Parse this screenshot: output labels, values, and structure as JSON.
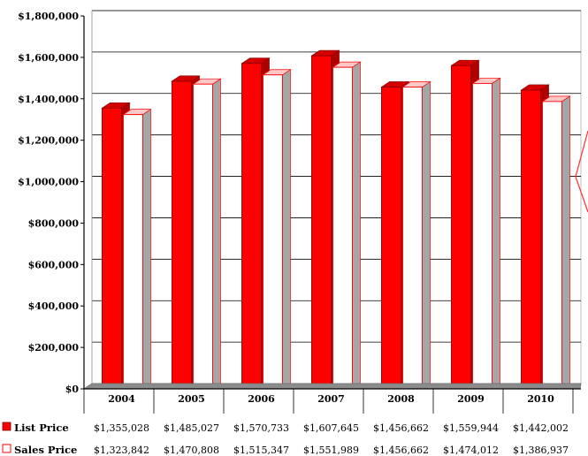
{
  "chart_data": {
    "type": "bar",
    "categories": [
      "2004",
      "2005",
      "2006",
      "2007",
      "2008",
      "2009",
      "2010"
    ],
    "series": [
      {
        "name": "List Price",
        "values": [
          1355028,
          1485027,
          1570733,
          1607645,
          1456662,
          1559944,
          1442002
        ],
        "labels": [
          "$1,355,028",
          "$1,485,027",
          "$1,570,733",
          "$1,607,645",
          "$1,456,662",
          "$1,559,944",
          "$1,442,002"
        ],
        "color": "#ff0000",
        "fill": "solid"
      },
      {
        "name": "Sales Price",
        "values": [
          1323842,
          1470808,
          1515347,
          1551989,
          1456662,
          1474012,
          1386937
        ],
        "labels": [
          "$1,323,842",
          "$1,470,808",
          "$1,515,347",
          "$1,551,989",
          "$1,456,662",
          "$1,474,012",
          "$1,386,937"
        ],
        "color": "#ffffff",
        "fill": "outline-red"
      }
    ],
    "ylim": [
      0,
      1800000
    ],
    "yticks": [
      0,
      200000,
      400000,
      600000,
      800000,
      1000000,
      1200000,
      1400000,
      1600000,
      1800000
    ],
    "ytick_labels": [
      "$0",
      "$200,000",
      "$400,000",
      "$600,000",
      "$800,000",
      "$1,000,000",
      "$1,200,000",
      "$1,400,000",
      "$1,600,000",
      "$1,800,000"
    ],
    "grid": true,
    "legend": "bottom data table",
    "title": "",
    "xlabel": "",
    "ylabel": ""
  }
}
